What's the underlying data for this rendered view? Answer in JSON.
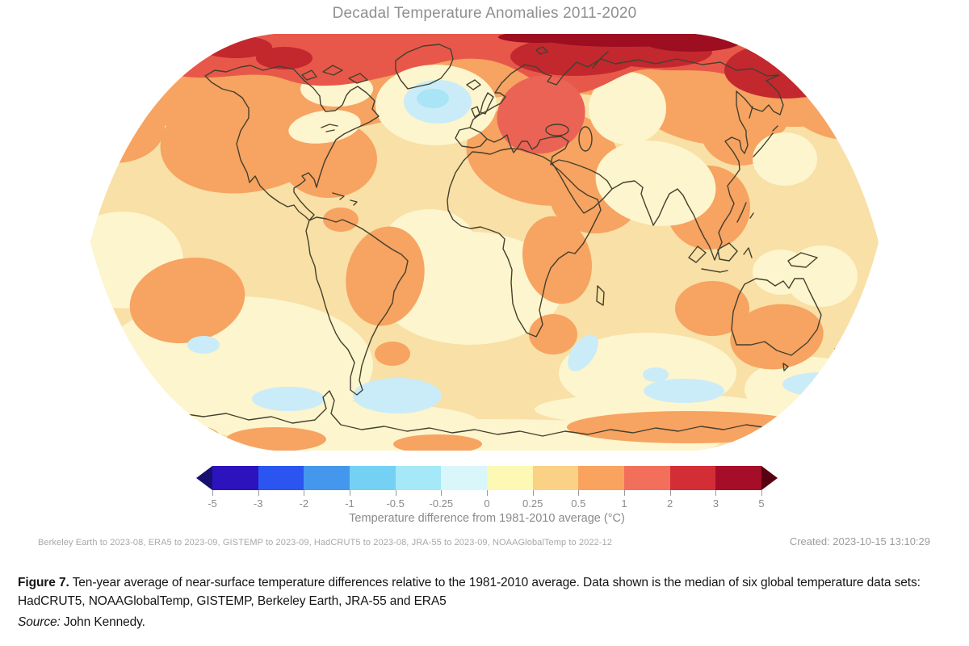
{
  "figure": {
    "title": "Decadal Temperature Anomalies 2011-2020"
  },
  "colorbar": {
    "axis_label": "Temperature difference from 1981-2010 average (°C)",
    "ticks": [
      "-5",
      "-3",
      "-2",
      "-1",
      "-0.5",
      "-0.25",
      "0",
      "0.25",
      "0.5",
      "1",
      "2",
      "3",
      "5"
    ],
    "segment_colors": [
      "#2d13be",
      "#2b55f0",
      "#4497ec",
      "#74d1f4",
      "#a5e8f7",
      "#d9f6fa",
      "#fdf8b4",
      "#fbd285",
      "#f9a35f",
      "#f2705b",
      "#d32d35",
      "#a60d28"
    ],
    "under_arrow_color": "#181070",
    "over_arrow_color": "#560012"
  },
  "annotations": {
    "data_coverage": "Berkeley Earth to 2023-08, ERA5 to 2023-09, GISTEMP to 2023-09, HadCRUT5 to 2023-08, JRA-55 to 2023-09, NOAAGlobalTemp to 2022-12",
    "created": "Created: 2023-10-15 13:10:29"
  },
  "caption": {
    "label": "Figure 7.",
    "text": " Ten-year average of near-surface temperature differences relative to the 1981-2010 average. Data shown is the median of six global temperature data sets: HadCRUT5, NOAAGlobalTemp, GISTEMP, Berkeley Earth, JRA-55 and ERA5",
    "source_label": "Source:",
    "source": " John Kennedy."
  },
  "chart_data": {
    "type": "heatmap",
    "subtype": "filled-contour global anomaly map, Robinson projection",
    "title": "Decadal Temperature Anomalies 2011-2020",
    "period": "2011-2020",
    "baseline_period": "1981-2010",
    "variable": "near-surface temperature anomaly",
    "units": "°C",
    "statistic": "median of six global temperature data sets",
    "datasets": [
      "HadCRUT5",
      "NOAAGlobalTemp",
      "GISTEMP",
      "Berkeley Earth",
      "JRA-55",
      "ERA5"
    ],
    "colorbar": {
      "orientation": "horizontal",
      "label": "Temperature difference from 1981-2010 average (°C)",
      "breaks": [
        -5,
        -3,
        -2,
        -1,
        -0.5,
        -0.25,
        0,
        0.25,
        0.5,
        1,
        2,
        3,
        5
      ],
      "colors": [
        "#2d13be",
        "#2b55f0",
        "#4497ec",
        "#74d1f4",
        "#a5e8f7",
        "#d9f6fa",
        "#fdf8b4",
        "#fbd285",
        "#f9a35f",
        "#f2705b",
        "#d32d35",
        "#a60d28"
      ],
      "under_color": "#181070",
      "over_color": "#560012"
    },
    "legend_position": "bottom",
    "grid": false,
    "regions_readout": [
      {
        "region": "Arctic Ocean and high northern latitudes",
        "anomaly_c": "+1 to +3"
      },
      {
        "region": "Barents-Kara Seas and Siberian Arctic coast",
        "anomaly_c": "+2 to +5"
      },
      {
        "region": "Scandinavia / western Russia",
        "anomaly_c": "+1 to +2"
      },
      {
        "region": "Most northern continents (North America, Europe, Asia)",
        "anomaly_c": "+0.5 to +1"
      },
      {
        "region": "Tropical and subtropical oceans",
        "anomaly_c": "0 to +0.5"
      },
      {
        "region": "Brazil, southern Africa, southern Australia, SE Pacific",
        "anomaly_c": "+0.5 to +1"
      },
      {
        "region": "North Atlantic south of Greenland (warming hole)",
        "anomaly_c": "-0.5 to -0.25"
      },
      {
        "region": "Southern Ocean patches near Antarctica",
        "anomaly_c": "-0.5 to 0"
      },
      {
        "region": "Parts of the Antarctic coastline",
        "anomaly_c": "+0.5 to +1"
      }
    ]
  }
}
